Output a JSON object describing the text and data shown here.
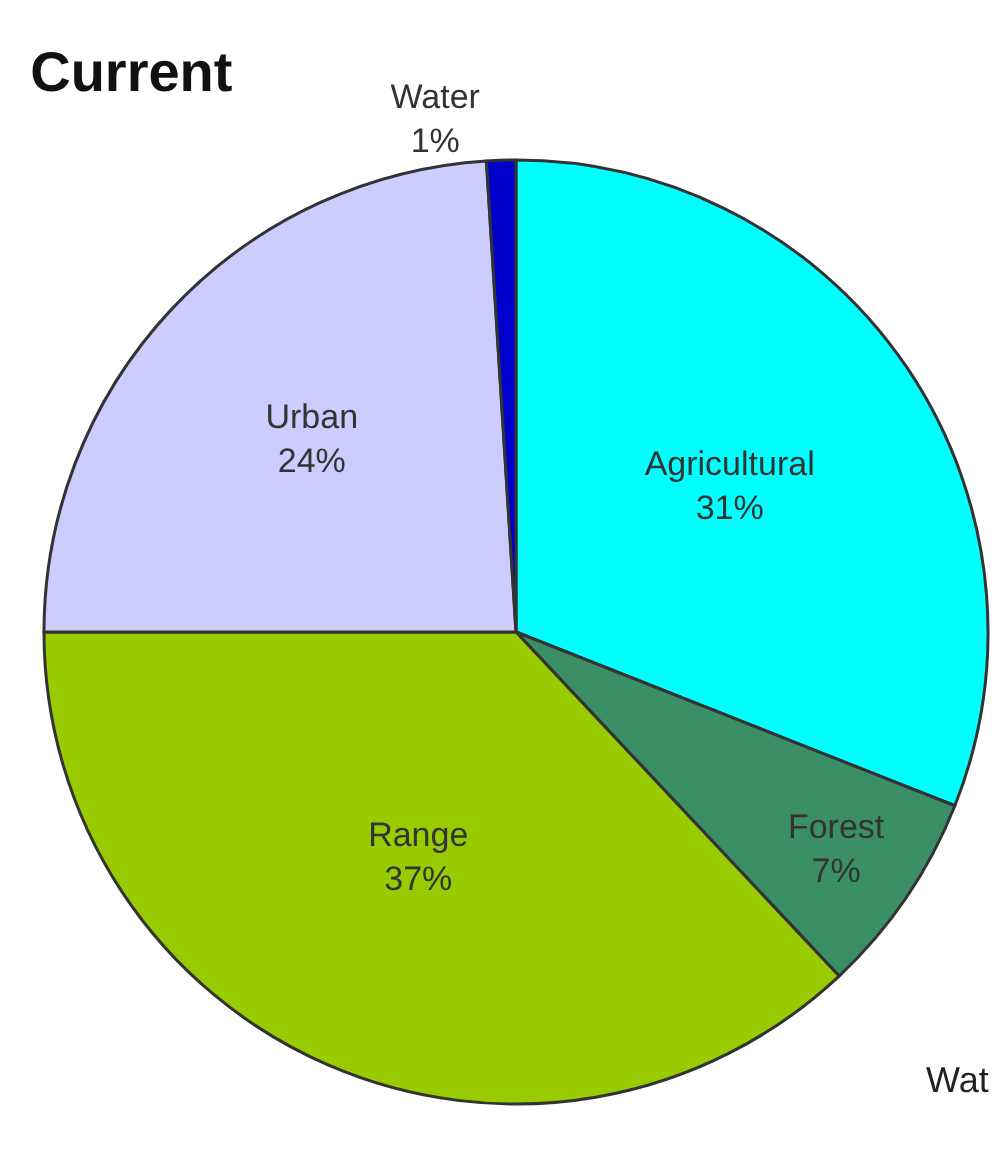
{
  "chart_data": {
    "type": "pie",
    "title": "Current",
    "categories": [
      "Agricultural",
      "Forest",
      "Range",
      "Urban",
      "Water"
    ],
    "values": [
      31,
      7,
      37,
      24,
      1
    ],
    "colors": [
      "#00ffff",
      "#3a8f66",
      "#99cc00",
      "#ccccff",
      "#0000cc"
    ],
    "value_labels": [
      "31%",
      "7%",
      "37%",
      "24%",
      "1%"
    ],
    "annotations": [
      {
        "text": "Wat"
      }
    ],
    "legend": false
  }
}
